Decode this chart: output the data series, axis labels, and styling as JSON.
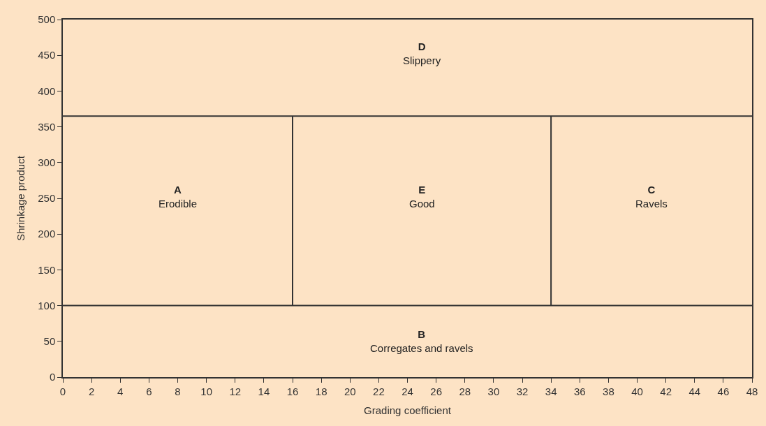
{
  "chart_data": {
    "type": "line",
    "xlabel": "Grading coefficient",
    "ylabel": "Shrinkage product",
    "xlim": [
      0,
      48
    ],
    "xticks": [
      0,
      2,
      4,
      6,
      8,
      10,
      12,
      14,
      16,
      18,
      20,
      22,
      24,
      26,
      28,
      30,
      32,
      34,
      36,
      38,
      40,
      42,
      44,
      46,
      48
    ],
    "ylim": [
      0,
      500
    ],
    "yticks": [
      0,
      50,
      100,
      150,
      200,
      250,
      300,
      350,
      400,
      450,
      500
    ],
    "grid": false,
    "marker": "none",
    "line_style": "solid",
    "series": [
      {
        "color": "#333333",
        "x": [
          0,
          48
        ],
        "values": [
          365,
          365
        ]
      },
      {
        "color": "#333333",
        "x": [
          0,
          48
        ],
        "values": [
          100,
          100
        ]
      },
      {
        "color": "#333333",
        "x": [
          16,
          16
        ],
        "values": [
          100,
          365
        ]
      },
      {
        "color": "#333333",
        "x": [
          34,
          34
        ],
        "values": [
          100,
          365
        ]
      }
    ],
    "annotations": [
      "D\nSlippery",
      "A\nErodible",
      "E\nGood",
      "C\nRavels",
      "B\nCorregates and ravels"
    ]
  }
}
